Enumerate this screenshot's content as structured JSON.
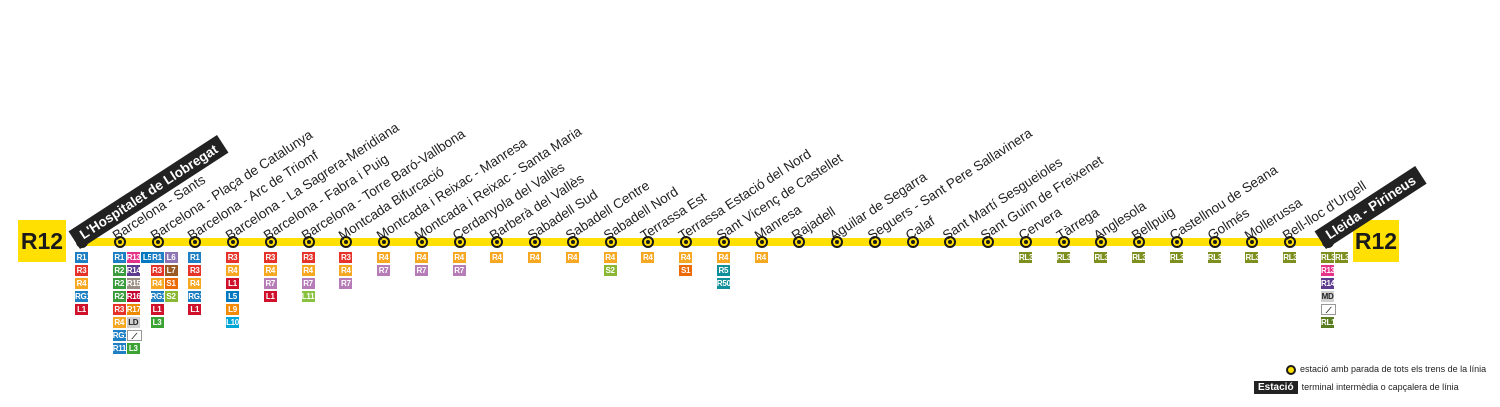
{
  "line": {
    "code": "R12",
    "color": "#FFE000",
    "origin": "L'Hospitalet de Llobregat",
    "destination": "Lleida - Pirineus"
  },
  "stations": [
    {
      "name": "L'Hospitalet de Llobregat",
      "terminal": true,
      "connections": [
        "R1",
        "R3",
        "R4",
        "RG1",
        "L1"
      ]
    },
    {
      "name": "Barcelona - Sants",
      "terminal": false,
      "connections": [
        "R1",
        "R2",
        "R2",
        "R2",
        "R3",
        "R4",
        "RG1",
        "R11",
        "R13",
        "R14",
        "R15",
        "R16",
        "R17",
        "LD",
        "AV",
        "L3",
        "L5"
      ]
    },
    {
      "name": "Barcelona - Plaça de Catalunya",
      "terminal": false,
      "connections": [
        "R1",
        "R3",
        "R4",
        "RG1",
        "L1",
        "L3",
        "L6",
        "L7",
        "S1",
        "S2"
      ]
    },
    {
      "name": "Barcelona - Arc de Triomf",
      "terminal": false,
      "connections": [
        "R1",
        "R3",
        "R4",
        "RG1",
        "L1"
      ]
    },
    {
      "name": "Barcelona - La Sagrera-Meridiana",
      "terminal": false,
      "connections": [
        "R3",
        "R4",
        "L1",
        "L5",
        "L9",
        "L10"
      ]
    },
    {
      "name": "Barcelona - Fabra i Puig",
      "terminal": false,
      "connections": [
        "R3",
        "R4",
        "R7",
        "L1"
      ]
    },
    {
      "name": "Barcelona - Torre Baró-Vallbona",
      "terminal": false,
      "connections": [
        "R3",
        "R4",
        "R7",
        "L11"
      ]
    },
    {
      "name": "Montcada Bifurcació",
      "terminal": false,
      "connections": [
        "R3",
        "R4",
        "R7"
      ]
    },
    {
      "name": "Montcada i Reixac - Manresa",
      "terminal": false,
      "connections": [
        "R4",
        "R7"
      ]
    },
    {
      "name": "Montcada i Reixac - Santa Maria",
      "terminal": false,
      "connections": [
        "R4",
        "R7"
      ]
    },
    {
      "name": "Cerdanyola del Vallès",
      "terminal": false,
      "connections": [
        "R4",
        "R7"
      ]
    },
    {
      "name": "Barberà del Vallès",
      "terminal": false,
      "connections": [
        "R4"
      ]
    },
    {
      "name": "Sabadell Sud",
      "terminal": false,
      "connections": [
        "R4"
      ]
    },
    {
      "name": "Sabadell Centre",
      "terminal": false,
      "connections": [
        "R4"
      ]
    },
    {
      "name": "Sabadell Nord",
      "terminal": false,
      "connections": [
        "R4",
        "S2"
      ]
    },
    {
      "name": "Terrassa Est",
      "terminal": false,
      "connections": [
        "R4"
      ]
    },
    {
      "name": "Terrassa Estació del Nord",
      "terminal": false,
      "connections": [
        "R4",
        "S1"
      ]
    },
    {
      "name": "Sant Vicenç de Castellet",
      "terminal": false,
      "connections": [
        "R4",
        "R5",
        "R50"
      ]
    },
    {
      "name": "Manresa",
      "terminal": false,
      "connections": [
        "R4"
      ]
    },
    {
      "name": "Rajadell",
      "terminal": false,
      "connections": []
    },
    {
      "name": "Aguilar de Segarra",
      "terminal": false,
      "connections": []
    },
    {
      "name": "Seguers - Sant Pere Sallavinera",
      "terminal": false,
      "connections": []
    },
    {
      "name": "Calaf",
      "terminal": false,
      "connections": []
    },
    {
      "name": "Sant Martí Sesgueioles",
      "terminal": false,
      "connections": []
    },
    {
      "name": "Sant Guim de Freixenet",
      "terminal": false,
      "connections": []
    },
    {
      "name": "Cervera",
      "terminal": false,
      "connections": [
        "RL3"
      ]
    },
    {
      "name": "Tàrrega",
      "terminal": false,
      "connections": [
        "RL3"
      ]
    },
    {
      "name": "Anglesola",
      "terminal": false,
      "connections": [
        "RL3"
      ]
    },
    {
      "name": "Bellpuig",
      "terminal": false,
      "connections": [
        "RL3"
      ]
    },
    {
      "name": "Castellnou de Seana",
      "terminal": false,
      "connections": [
        "RL3"
      ]
    },
    {
      "name": "Golmés",
      "terminal": false,
      "connections": [
        "RL3"
      ]
    },
    {
      "name": "Mollerussa",
      "terminal": false,
      "connections": [
        "RL3"
      ]
    },
    {
      "name": "Bell-lloc d'Urgell",
      "terminal": false,
      "connections": [
        "RL3"
      ]
    },
    {
      "name": "Lleida - Pirineus",
      "terminal": true,
      "connections": [
        "RL3",
        "R13",
        "R14",
        "MD",
        "AV",
        "RL1",
        "RL3"
      ]
    }
  ],
  "connection_colors": {
    "R1": "#1e7fc3",
    "R2": "#3a9c3c",
    "R3": "#e5332a",
    "R4": "#f7a823",
    "R5": "#0f8f9a",
    "R50": "#0f8f9a",
    "R7": "#b57cb8",
    "R11": "#1e7fc3",
    "R13": "#e6338a",
    "R14": "#5d3c8f",
    "R15": "#9b8e84",
    "R16": "#c3002f",
    "R17": "#ed8b00",
    "RG1": "#1e7fc3",
    "L1": "#d0112b",
    "L3": "#3aa334",
    "L5": "#0078bf",
    "L6": "#8e76b3",
    "L7": "#9a5b25",
    "L9": "#f28b00",
    "L10": "#00a6d6",
    "L11": "#89c23f",
    "S1": "#ed6b06",
    "S2": "#8ab833",
    "RL1": "#5b7d21",
    "RL3": "#7d8f1f",
    "LD": "#d0d0d0",
    "MD": "#d0d0d0",
    "AV": "#ffffff"
  },
  "legend": [
    {
      "symbol": "stop",
      "text": "estació amb parada de tots els trens de la línia"
    },
    {
      "symbol": "Estació",
      "text": "terminal intermèdia o capçalera de línia"
    }
  ]
}
